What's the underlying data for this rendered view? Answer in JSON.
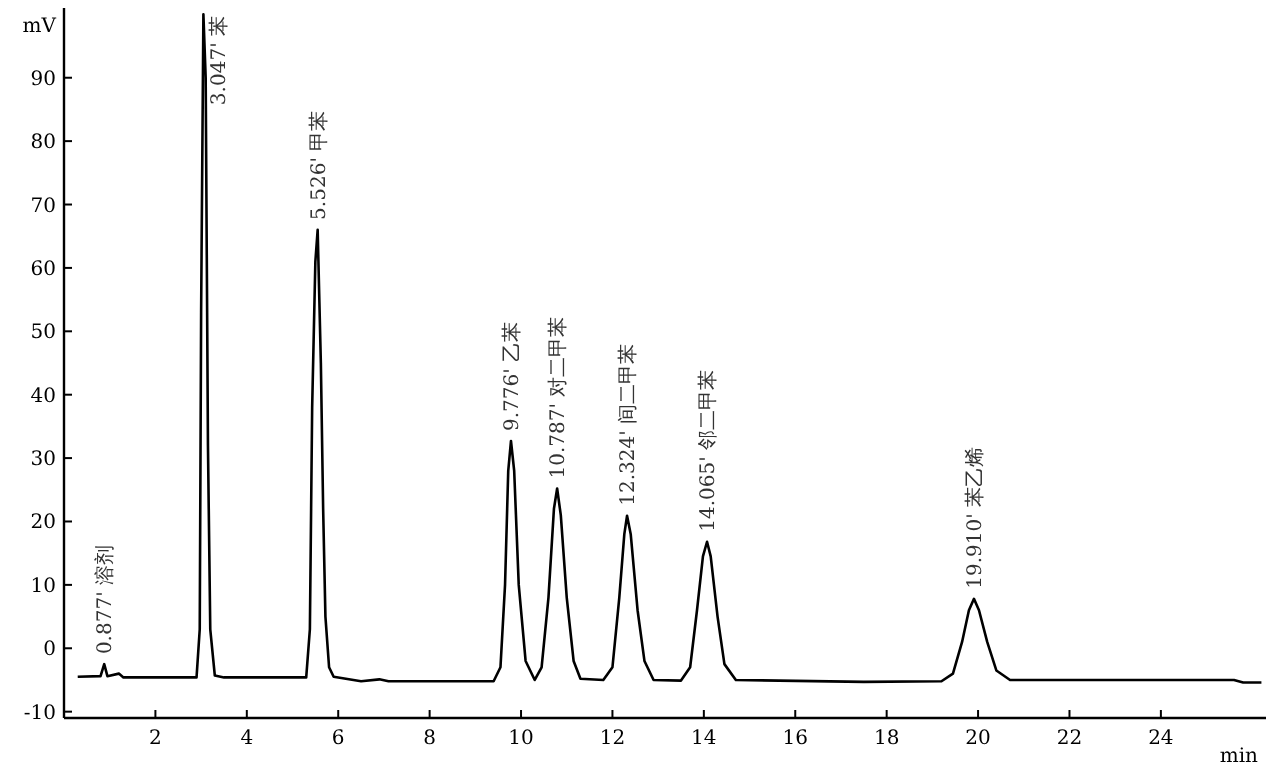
{
  "chart_data": {
    "type": "line",
    "xlabel": "min",
    "ylabel": "mV",
    "color": "#000000",
    "xlim": [
      0,
      26.3
    ],
    "ylim": [
      -11,
      101
    ],
    "xticks": [
      2,
      4,
      6,
      8,
      10,
      12,
      14,
      16,
      18,
      20,
      22,
      24
    ],
    "yticks": [
      -10,
      0,
      10,
      20,
      30,
      40,
      50,
      60,
      70,
      80,
      90
    ],
    "x": [
      0.3,
      0.8,
      0.88,
      0.95,
      1.2,
      1.3,
      1.4,
      2.9,
      2.97,
      3.0,
      3.05,
      3.1,
      3.15,
      3.2,
      3.3,
      3.5,
      5.3,
      5.38,
      5.43,
      5.5,
      5.55,
      5.62,
      5.67,
      5.72,
      5.8,
      5.9,
      6.5,
      6.9,
      7.1,
      9.4,
      9.55,
      9.65,
      9.72,
      9.78,
      9.85,
      9.95,
      10.1,
      10.3,
      10.45,
      10.6,
      10.72,
      10.79,
      10.87,
      11.0,
      11.15,
      11.3,
      11.8,
      12.0,
      12.15,
      12.26,
      12.32,
      12.4,
      12.55,
      12.7,
      12.9,
      13.5,
      13.7,
      13.85,
      13.98,
      14.07,
      14.15,
      14.3,
      14.45,
      14.7,
      17.5,
      19.2,
      19.45,
      19.65,
      19.8,
      19.91,
      20.02,
      20.2,
      20.4,
      20.7,
      25.6,
      25.8,
      26.2
    ],
    "values": [
      -4.5,
      -4.4,
      -2.5,
      -4.4,
      -4.0,
      -4.6,
      -4.6,
      -4.6,
      3,
      53,
      100,
      90,
      32,
      3,
      -4.3,
      -4.6,
      -4.6,
      3,
      38,
      61,
      66,
      45,
      22,
      5,
      -3,
      -4.5,
      -5.2,
      -4.9,
      -5.2,
      -5.2,
      -3,
      10,
      28,
      32.7,
      28,
      10,
      -2,
      -5,
      -3,
      8,
      22,
      25.2,
      21,
      8,
      -2,
      -4.8,
      -5,
      -3,
      8,
      18,
      20.9,
      18,
      6,
      -2,
      -5,
      -5.1,
      -3,
      6,
      14.5,
      16.8,
      14.5,
      5,
      -2.5,
      -5,
      -5.3,
      -5.2,
      -4,
      1,
      6,
      7.8,
      6,
      1,
      -3.5,
      -5,
      -5,
      -5.4,
      -5.4
    ],
    "annotations": [
      {
        "text": "0.877' 溶剂",
        "x": 0.88,
        "y": -2.5
      },
      {
        "text": "3.047' 苯",
        "x": 3.05,
        "y": 100
      },
      {
        "text": "5.526' 甲苯",
        "x": 5.55,
        "y": 66
      },
      {
        "text": "9.776' 乙苯",
        "x": 9.78,
        "y": 32.7
      },
      {
        "text": "10.787' 对二甲苯",
        "x": 10.79,
        "y": 25.2
      },
      {
        "text": "12.324' 间二甲苯",
        "x": 12.32,
        "y": 20.9
      },
      {
        "text": "14.065' 邻二甲苯",
        "x": 14.07,
        "y": 16.8
      },
      {
        "text": "19.910' 苯乙烯",
        "x": 19.91,
        "y": 7.8
      }
    ]
  }
}
